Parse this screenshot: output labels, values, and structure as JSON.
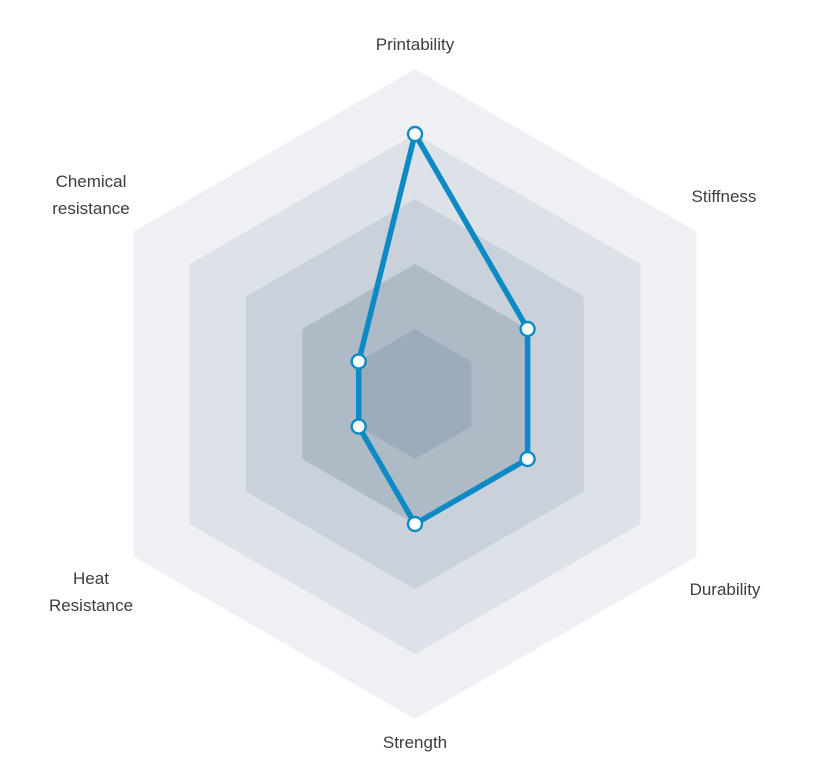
{
  "chart_data": {
    "type": "radar",
    "grid_shape": "hexagon",
    "grid_on": true,
    "legend": "none",
    "scale_min": 0,
    "scale_max": 5,
    "ring_count": 5,
    "axes": [
      {
        "label": "Printability",
        "value": 4
      },
      {
        "label": "Stiffness",
        "value": 2
      },
      {
        "label": "Durability",
        "value": 2
      },
      {
        "label": "Strength",
        "value": 2
      },
      {
        "label": "Heat Resistance",
        "value": 1
      },
      {
        "label": "Chemical resistance",
        "value": 1
      }
    ],
    "series_color": "#0d8ac4",
    "marker_fill": "#ffffff",
    "ring_colors_outer_to_inner": [
      "#eef0f4",
      "#dde1e8",
      "#c9d2db",
      "#aebac6",
      "#9dacba"
    ],
    "label_color": "#3d3d3d",
    "background": "#ffffff"
  }
}
